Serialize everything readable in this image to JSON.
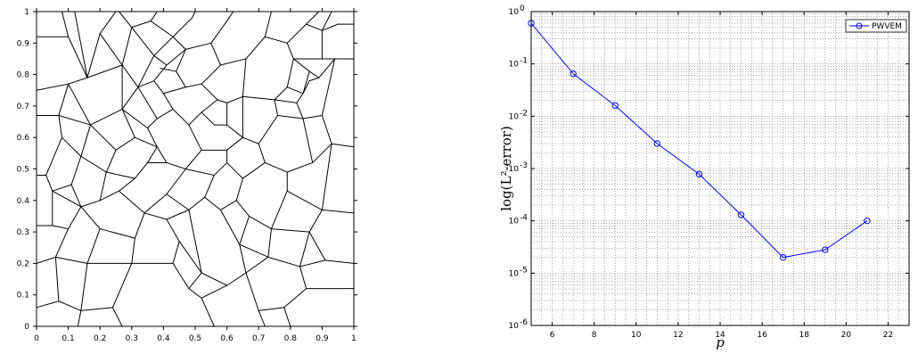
{
  "chart_data": [
    {
      "type": "mesh",
      "title": "",
      "xlabel": "",
      "ylabel": "",
      "xlim": [
        0,
        1
      ],
      "ylim": [
        0,
        1
      ],
      "x_ticks": [
        "0",
        "0.1",
        "0.2",
        "0.3",
        "0.4",
        "0.5",
        "0.6",
        "0.7",
        "0.8",
        "0.9",
        "1"
      ],
      "y_ticks": [
        "0",
        "0.1",
        "0.2",
        "0.3",
        "0.4",
        "0.5",
        "0.6",
        "0.7",
        "0.8",
        "0.9",
        "1"
      ],
      "edges": [
        [
          0,
          0.92,
          0.1,
          0.92
        ],
        [
          0.1,
          0.92,
          0.08,
          1
        ],
        [
          0.1,
          0.92,
          0.16,
          0.79
        ],
        [
          0.16,
          0.79,
          0.12,
          1
        ],
        [
          0.16,
          0.79,
          0.27,
          0.83
        ],
        [
          0.27,
          0.83,
          0.2,
          0.93
        ],
        [
          0.2,
          0.93,
          0.16,
          0.79
        ],
        [
          0.2,
          0.93,
          0.25,
          1
        ],
        [
          0.27,
          0.83,
          0.3,
          0.95
        ],
        [
          0.3,
          0.95,
          0.36,
          0.97
        ],
        [
          0.36,
          0.97,
          0.38,
          1
        ],
        [
          0.3,
          0.95,
          0.26,
          1
        ],
        [
          0,
          0.67,
          0.07,
          0.67
        ],
        [
          0.07,
          0.67,
          0.1,
          0.77
        ],
        [
          0.1,
          0.77,
          0.16,
          0.79
        ],
        [
          0.07,
          0.67,
          0.17,
          0.64
        ],
        [
          0.17,
          0.64,
          0.1,
          0.77
        ],
        [
          0,
          0.75,
          0.1,
          0.77
        ],
        [
          0.17,
          0.64,
          0.27,
          0.69
        ],
        [
          0.27,
          0.69,
          0.27,
          0.83
        ],
        [
          0.27,
          0.69,
          0.32,
          0.76
        ],
        [
          0.32,
          0.76,
          0.27,
          0.83
        ],
        [
          0.32,
          0.76,
          0.37,
          0.86
        ],
        [
          0.37,
          0.86,
          0.3,
          0.95
        ],
        [
          0.36,
          0.97,
          0.43,
          0.92
        ],
        [
          0.43,
          0.92,
          0.37,
          0.86
        ],
        [
          0.43,
          0.92,
          0.47,
          0.88
        ],
        [
          0.47,
          0.88,
          0.41,
          0.83
        ],
        [
          0.41,
          0.83,
          0.37,
          0.86
        ],
        [
          0.41,
          0.83,
          0.37,
          0.78
        ],
        [
          0.37,
          0.78,
          0.32,
          0.76
        ],
        [
          0.43,
          0.92,
          0.49,
          0.98
        ],
        [
          0.49,
          0.98,
          0.5,
          1
        ],
        [
          0.47,
          0.88,
          0.55,
          0.9
        ],
        [
          0.55,
          0.9,
          0.6,
          0.97
        ],
        [
          0.6,
          0.97,
          0.62,
          1
        ],
        [
          0.55,
          0.9,
          0.58,
          0.83
        ],
        [
          0.58,
          0.83,
          0.66,
          0.85
        ],
        [
          0.66,
          0.85,
          0.72,
          0.92
        ],
        [
          0.72,
          0.92,
          0.74,
          1
        ],
        [
          0.72,
          0.92,
          0.79,
          0.9
        ],
        [
          0.79,
          0.9,
          0.85,
          0.96
        ],
        [
          0.85,
          0.96,
          0.89,
          1
        ],
        [
          0.85,
          0.96,
          0.9,
          0.94
        ],
        [
          0.9,
          0.94,
          0.93,
          1
        ],
        [
          0.9,
          0.94,
          0.95,
          0.96
        ],
        [
          0.95,
          0.96,
          1,
          0.96
        ],
        [
          0.79,
          0.9,
          0.81,
          0.85
        ],
        [
          0.81,
          0.85,
          0.9,
          0.85
        ],
        [
          0.9,
          0.85,
          0.9,
          0.94
        ],
        [
          0.9,
          0.85,
          0.94,
          0.85
        ],
        [
          0.94,
          0.85,
          1,
          0.85
        ],
        [
          0.94,
          0.85,
          0.89,
          0.79
        ],
        [
          0.89,
          0.79,
          0.86,
          0.81
        ],
        [
          0.86,
          0.81,
          0.81,
          0.85
        ],
        [
          0.86,
          0.81,
          0.84,
          0.74
        ],
        [
          0.84,
          0.74,
          0.86,
          0.78
        ],
        [
          0.86,
          0.78,
          0.89,
          0.79
        ],
        [
          0.47,
          0.88,
          0.44,
          0.81
        ],
        [
          0.44,
          0.81,
          0.39,
          0.82
        ],
        [
          0.44,
          0.81,
          0.47,
          0.76
        ],
        [
          0.47,
          0.76,
          0.52,
          0.77
        ],
        [
          0.52,
          0.77,
          0.58,
          0.83
        ],
        [
          0.52,
          0.77,
          0.57,
          0.72
        ],
        [
          0.57,
          0.72,
          0.6,
          0.71
        ],
        [
          0.6,
          0.71,
          0.65,
          0.73
        ],
        [
          0.65,
          0.73,
          0.66,
          0.85
        ],
        [
          0.65,
          0.73,
          0.75,
          0.72
        ],
        [
          0.75,
          0.72,
          0.79,
          0.76
        ],
        [
          0.79,
          0.76,
          0.81,
          0.85
        ],
        [
          0.79,
          0.76,
          0.84,
          0.74
        ],
        [
          0.84,
          0.74,
          0.82,
          0.71
        ],
        [
          0.82,
          0.71,
          0.75,
          0.72
        ],
        [
          0.82,
          0.71,
          0.84,
          0.66
        ],
        [
          0.84,
          0.66,
          0.76,
          0.67
        ],
        [
          0.76,
          0.67,
          0.75,
          0.72
        ],
        [
          0.84,
          0.66,
          0.9,
          0.67
        ],
        [
          0.9,
          0.67,
          0.94,
          0.85
        ],
        [
          0.9,
          0.67,
          0.93,
          0.58
        ],
        [
          0.93,
          0.58,
          1,
          0.57
        ],
        [
          0.93,
          0.58,
          0.87,
          0.52
        ],
        [
          0.37,
          0.78,
          0.4,
          0.74
        ],
        [
          0.4,
          0.74,
          0.47,
          0.76
        ],
        [
          0.4,
          0.74,
          0.43,
          0.69
        ],
        [
          0.43,
          0.69,
          0.38,
          0.66
        ],
        [
          0.38,
          0.66,
          0.32,
          0.76
        ],
        [
          0.38,
          0.66,
          0.35,
          0.63
        ],
        [
          0.35,
          0.63,
          0.27,
          0.69
        ],
        [
          0.43,
          0.69,
          0.48,
          0.64
        ],
        [
          0.48,
          0.64,
          0.52,
          0.68
        ],
        [
          0.52,
          0.68,
          0.57,
          0.72
        ],
        [
          0.52,
          0.68,
          0.56,
          0.64
        ],
        [
          0.56,
          0.64,
          0.6,
          0.64
        ],
        [
          0.6,
          0.64,
          0.6,
          0.71
        ],
        [
          0.6,
          0.64,
          0.65,
          0.6
        ],
        [
          0.65,
          0.6,
          0.65,
          0.73
        ],
        [
          0.65,
          0.6,
          0.7,
          0.58
        ],
        [
          0.7,
          0.58,
          0.76,
          0.67
        ],
        [
          0.7,
          0.58,
          0.72,
          0.52
        ],
        [
          0.72,
          0.52,
          0.79,
          0.49
        ],
        [
          0.79,
          0.49,
          0.87,
          0.52
        ],
        [
          0.87,
          0.52,
          0.84,
          0.66
        ],
        [
          0.79,
          0.49,
          0.79,
          0.43
        ],
        [
          0.79,
          0.43,
          0.9,
          0.37
        ],
        [
          0.9,
          0.37,
          0.93,
          0.58
        ],
        [
          0.9,
          0.37,
          1,
          0.36
        ],
        [
          0.9,
          0.37,
          0.86,
          0.3
        ],
        [
          0.86,
          0.3,
          0.91,
          0.21
        ],
        [
          0.91,
          0.21,
          1,
          0.2
        ],
        [
          0.91,
          0.21,
          0.83,
          0.19
        ],
        [
          0.83,
          0.19,
          0.86,
          0.3
        ],
        [
          0.83,
          0.19,
          0.85,
          0.12
        ],
        [
          0.85,
          0.12,
          1,
          0.12
        ],
        [
          0.85,
          0.12,
          0.78,
          0.06
        ],
        [
          0.78,
          0.06,
          0.8,
          0
        ],
        [
          0.78,
          0.06,
          0.7,
          0.05
        ],
        [
          0.7,
          0.05,
          0.72,
          0
        ],
        [
          0.83,
          0.19,
          0.73,
          0.22
        ],
        [
          0.73,
          0.22,
          0.74,
          0.31
        ],
        [
          0.74,
          0.31,
          0.86,
          0.3
        ],
        [
          0.74,
          0.31,
          0.79,
          0.43
        ],
        [
          0.73,
          0.22,
          0.66,
          0.17
        ],
        [
          0.66,
          0.17,
          0.7,
          0.05
        ],
        [
          0.66,
          0.17,
          0.6,
          0.13
        ],
        [
          0.6,
          0.13,
          0.52,
          0.17
        ],
        [
          0.52,
          0.17,
          0.48,
          0.12
        ],
        [
          0.48,
          0.12,
          0.43,
          0.2
        ],
        [
          0.48,
          0.12,
          0.52,
          0.09
        ],
        [
          0.52,
          0.09,
          0.6,
          0.13
        ],
        [
          0.52,
          0.09,
          0.56,
          0
        ],
        [
          0.66,
          0.17,
          0.64,
          0.26
        ],
        [
          0.64,
          0.26,
          0.73,
          0.22
        ],
        [
          0.64,
          0.26,
          0.67,
          0.35
        ],
        [
          0.67,
          0.35,
          0.74,
          0.31
        ],
        [
          0.67,
          0.35,
          0.63,
          0.4
        ],
        [
          0.63,
          0.4,
          0.58,
          0.37
        ],
        [
          0.58,
          0.37,
          0.64,
          0.26
        ],
        [
          0.58,
          0.37,
          0.53,
          0.41
        ],
        [
          0.53,
          0.41,
          0.48,
          0.37
        ],
        [
          0.48,
          0.37,
          0.52,
          0.17
        ],
        [
          0.63,
          0.4,
          0.65,
          0.47
        ],
        [
          0.65,
          0.47,
          0.72,
          0.52
        ],
        [
          0.65,
          0.47,
          0.6,
          0.52
        ],
        [
          0.6,
          0.52,
          0.56,
          0.48
        ],
        [
          0.56,
          0.48,
          0.53,
          0.41
        ],
        [
          0.6,
          0.52,
          0.6,
          0.56
        ],
        [
          0.6,
          0.56,
          0.65,
          0.6
        ],
        [
          0.6,
          0.56,
          0.52,
          0.56
        ],
        [
          0.52,
          0.56,
          0.48,
          0.64
        ],
        [
          0.52,
          0.56,
          0.47,
          0.5
        ],
        [
          0.47,
          0.5,
          0.56,
          0.48
        ],
        [
          0.47,
          0.5,
          0.41,
          0.52
        ],
        [
          0.41,
          0.52,
          0.38,
          0.57
        ],
        [
          0.38,
          0.57,
          0.35,
          0.63
        ],
        [
          0.38,
          0.57,
          0.31,
          0.6
        ],
        [
          0.31,
          0.6,
          0.27,
          0.69
        ],
        [
          0.31,
          0.6,
          0.25,
          0.56
        ],
        [
          0.25,
          0.56,
          0.17,
          0.64
        ],
        [
          0.25,
          0.56,
          0.22,
          0.49
        ],
        [
          0.22,
          0.49,
          0.14,
          0.54
        ],
        [
          0.14,
          0.54,
          0.17,
          0.64
        ],
        [
          0.14,
          0.54,
          0.08,
          0.6
        ],
        [
          0.08,
          0.6,
          0.07,
          0.67
        ],
        [
          0.08,
          0.6,
          0.03,
          0.48
        ],
        [
          0.03,
          0.48,
          0,
          0.48
        ],
        [
          0.03,
          0.48,
          0.05,
          0.43
        ],
        [
          0.05,
          0.43,
          0.11,
          0.45
        ],
        [
          0.11,
          0.45,
          0.14,
          0.54
        ],
        [
          0.11,
          0.45,
          0.14,
          0.38
        ],
        [
          0.14,
          0.38,
          0.05,
          0.43
        ],
        [
          0.14,
          0.38,
          0.2,
          0.4
        ],
        [
          0.2,
          0.4,
          0.22,
          0.49
        ],
        [
          0.2,
          0.4,
          0.26,
          0.43
        ],
        [
          0.26,
          0.43,
          0.31,
          0.47
        ],
        [
          0.31,
          0.47,
          0.22,
          0.49
        ],
        [
          0.31,
          0.47,
          0.35,
          0.52
        ],
        [
          0.35,
          0.52,
          0.41,
          0.52
        ],
        [
          0.35,
          0.52,
          0.38,
          0.57
        ],
        [
          0.26,
          0.43,
          0.34,
          0.36
        ],
        [
          0.34,
          0.36,
          0.41,
          0.42
        ],
        [
          0.41,
          0.42,
          0.47,
          0.5
        ],
        [
          0.41,
          0.42,
          0.48,
          0.37
        ],
        [
          0.34,
          0.36,
          0.31,
          0.28
        ],
        [
          0.31,
          0.28,
          0.2,
          0.31
        ],
        [
          0.2,
          0.31,
          0.14,
          0.38
        ],
        [
          0.2,
          0.31,
          0.16,
          0.2
        ],
        [
          0.16,
          0.2,
          0.06,
          0.22
        ],
        [
          0.06,
          0.22,
          0,
          0.2
        ],
        [
          0.06,
          0.22,
          0.1,
          0.31
        ],
        [
          0.1,
          0.31,
          0.14,
          0.38
        ],
        [
          0.1,
          0.31,
          0.05,
          0.32
        ],
        [
          0.05,
          0.32,
          0,
          0.32
        ],
        [
          0.05,
          0.32,
          0.05,
          0.43
        ],
        [
          0.06,
          0.22,
          0.07,
          0.08
        ],
        [
          0.07,
          0.08,
          0,
          0.06
        ],
        [
          0.07,
          0.08,
          0.14,
          0.05
        ],
        [
          0.14,
          0.05,
          0.16,
          0.2
        ],
        [
          0.14,
          0.05,
          0.13,
          0
        ],
        [
          0.14,
          0.05,
          0.24,
          0.06
        ],
        [
          0.24,
          0.06,
          0.3,
          0.2
        ],
        [
          0.3,
          0.2,
          0.16,
          0.2
        ],
        [
          0.3,
          0.2,
          0.31,
          0.28
        ],
        [
          0.24,
          0.06,
          0.27,
          0
        ],
        [
          0.3,
          0.2,
          0.43,
          0.2
        ],
        [
          0.43,
          0.2,
          0.45,
          0.27
        ],
        [
          0.45,
          0.27,
          0.41,
          0.34
        ],
        [
          0.41,
          0.34,
          0.34,
          0.36
        ],
        [
          0.45,
          0.27,
          0.52,
          0.17
        ],
        [
          0.41,
          0.34,
          0.48,
          0.37
        ]
      ]
    },
    {
      "type": "line",
      "title": "",
      "xlabel": "p",
      "ylabel": "log(L²-error)",
      "y_scale": "log",
      "xlim": [
        5,
        23
      ],
      "ylim": [
        1e-06,
        1
      ],
      "grid": true,
      "legend_position": "top-right",
      "x_ticks": [
        6,
        8,
        10,
        12,
        14,
        16,
        18,
        20,
        22
      ],
      "y_ticks": [
        {
          "base": "10",
          "exp": "0"
        },
        {
          "base": "10",
          "exp": "-1"
        },
        {
          "base": "10",
          "exp": "-2"
        },
        {
          "base": "10",
          "exp": "-3"
        },
        {
          "base": "10",
          "exp": "-4"
        },
        {
          "base": "10",
          "exp": "-5"
        },
        {
          "base": "10",
          "exp": "-6"
        }
      ],
      "series": [
        {
          "name": "PWVEM",
          "color": "#0000ff",
          "marker": "circle",
          "x": [
            5,
            7,
            9,
            11,
            13,
            15,
            17,
            19,
            21
          ],
          "y": [
            0.6,
            0.065,
            0.016,
            0.003,
            0.00078,
            0.00013,
            2e-05,
            2.8e-05,
            0.0001
          ]
        }
      ]
    }
  ]
}
